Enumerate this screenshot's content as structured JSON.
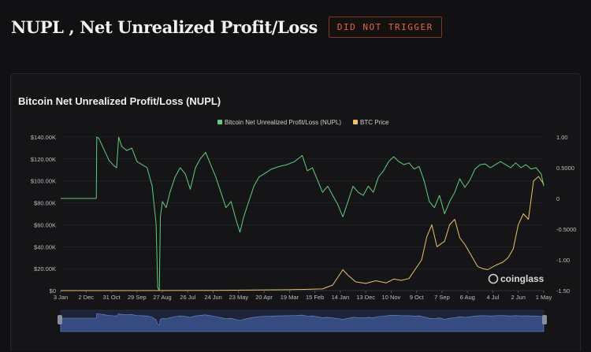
{
  "page": {
    "title": "NUPL , Net Unrealized Profit/Loss",
    "trigger_badge": "DID NOT TRIGGER"
  },
  "chart_panel": {
    "title": "Bitcoin Net Unrealized Profit/Loss (NUPL)",
    "watermark": "coinglass"
  },
  "colors": {
    "nupl": "#5fce7c",
    "btc_price": "#e8c16a",
    "badge": "#e0674a",
    "background": "#111113"
  },
  "chart_data": {
    "type": "line",
    "title": "Bitcoin Net Unrealized Profit/Loss (NUPL)",
    "x_order": "reversed",
    "categories": [
      "3 Jan",
      "2 Dec",
      "31 Oct",
      "29 Sep",
      "27 Aug",
      "26 Jul",
      "24 Jun",
      "23 May",
      "20 Apr",
      "19 Mar",
      "15 Feb",
      "14 Jan",
      "13 Dec",
      "10 Nov",
      "9 Oct",
      "7 Sep",
      "6 Aug",
      "4 Jul",
      "2 Jun",
      "1 May"
    ],
    "y_left": {
      "ticks": [
        "$0",
        "$20.00K",
        "$40.00K",
        "$60.00K",
        "$80.00K",
        "$100.00K",
        "$120.00K",
        "$140.00K"
      ],
      "range": [
        0,
        140000
      ]
    },
    "y_right": {
      "ticks": [
        "1.00",
        "0.5000",
        "0",
        "-0.5000",
        "-1.00",
        "-1.50"
      ],
      "range": [
        -1.5,
        1.0
      ]
    },
    "grid": true,
    "legend_position": "top-center",
    "series": [
      {
        "name": "Bitcoin Net Unrealized Profit/Loss (NUPL)",
        "axis": "right",
        "points": [
          [
            0,
            0
          ],
          [
            0.5,
            0
          ],
          [
            1,
            0
          ],
          [
            1.4,
            0
          ],
          [
            1.42,
            1.0
          ],
          [
            1.5,
            0.98
          ],
          [
            1.7,
            0.8
          ],
          [
            1.9,
            0.62
          ],
          [
            2.1,
            0.53
          ],
          [
            2.2,
            0.5
          ],
          [
            2.28,
            1.0
          ],
          [
            2.4,
            0.85
          ],
          [
            2.6,
            0.78
          ],
          [
            2.8,
            0.82
          ],
          [
            3.0,
            0.6
          ],
          [
            3.2,
            0.55
          ],
          [
            3.4,
            0.5
          ],
          [
            3.6,
            0.2
          ],
          [
            3.75,
            -0.4
          ],
          [
            3.82,
            -1.45
          ],
          [
            3.88,
            -1.5
          ],
          [
            3.92,
            -0.3
          ],
          [
            4.0,
            -0.05
          ],
          [
            4.15,
            -0.15
          ],
          [
            4.3,
            0.1
          ],
          [
            4.5,
            0.35
          ],
          [
            4.7,
            0.5
          ],
          [
            4.9,
            0.4
          ],
          [
            5.1,
            0.15
          ],
          [
            5.3,
            0.5
          ],
          [
            5.5,
            0.65
          ],
          [
            5.7,
            0.75
          ],
          [
            5.9,
            0.55
          ],
          [
            6.1,
            0.35
          ],
          [
            6.3,
            0.1
          ],
          [
            6.5,
            -0.15
          ],
          [
            6.7,
            -0.05
          ],
          [
            6.9,
            -0.35
          ],
          [
            7.05,
            -0.55
          ],
          [
            7.2,
            -0.3
          ],
          [
            7.4,
            -0.05
          ],
          [
            7.6,
            0.2
          ],
          [
            7.8,
            0.35
          ],
          [
            8.0,
            0.4
          ],
          [
            8.3,
            0.48
          ],
          [
            8.6,
            0.52
          ],
          [
            8.9,
            0.55
          ],
          [
            9.2,
            0.6
          ],
          [
            9.5,
            0.7
          ],
          [
            9.7,
            0.45
          ],
          [
            9.9,
            0.5
          ],
          [
            10.1,
            0.3
          ],
          [
            10.3,
            0.1
          ],
          [
            10.5,
            0.2
          ],
          [
            10.7,
            0.05
          ],
          [
            10.9,
            -0.1
          ],
          [
            11.1,
            -0.3
          ],
          [
            11.3,
            -0.05
          ],
          [
            11.5,
            0.2
          ],
          [
            11.7,
            0.1
          ],
          [
            11.9,
            0.05
          ],
          [
            12.1,
            0.2
          ],
          [
            12.3,
            0.1
          ],
          [
            12.5,
            0.35
          ],
          [
            12.7,
            0.45
          ],
          [
            12.9,
            0.6
          ],
          [
            13.1,
            0.68
          ],
          [
            13.3,
            0.6
          ],
          [
            13.5,
            0.55
          ],
          [
            13.7,
            0.58
          ],
          [
            13.9,
            0.48
          ],
          [
            14.1,
            0.52
          ],
          [
            14.3,
            0.28
          ],
          [
            14.5,
            -0.05
          ],
          [
            14.7,
            -0.15
          ],
          [
            14.9,
            0.05
          ],
          [
            15.1,
            -0.25
          ],
          [
            15.3,
            -0.05
          ],
          [
            15.5,
            0.1
          ],
          [
            15.7,
            0.32
          ],
          [
            15.9,
            0.18
          ],
          [
            16.1,
            0.3
          ],
          [
            16.3,
            0.48
          ],
          [
            16.5,
            0.55
          ],
          [
            16.7,
            0.56
          ],
          [
            16.9,
            0.5
          ],
          [
            17.1,
            0.55
          ],
          [
            17.3,
            0.6
          ],
          [
            17.5,
            0.55
          ],
          [
            17.7,
            0.5
          ],
          [
            17.9,
            0.58
          ],
          [
            18.1,
            0.5
          ],
          [
            18.3,
            0.55
          ],
          [
            18.5,
            0.48
          ],
          [
            18.7,
            0.5
          ],
          [
            18.9,
            0.4
          ],
          [
            19.0,
            0.2
          ]
        ]
      },
      {
        "name": "BTC Price",
        "axis": "left",
        "points": [
          [
            0,
            0
          ],
          [
            3,
            0
          ],
          [
            6,
            250
          ],
          [
            9,
            800
          ],
          [
            10.3,
            1500
          ],
          [
            10.7,
            5000
          ],
          [
            11.1,
            19000
          ],
          [
            11.3,
            14000
          ],
          [
            11.6,
            8000
          ],
          [
            12,
            6500
          ],
          [
            12.4,
            9000
          ],
          [
            12.8,
            7000
          ],
          [
            13.1,
            10500
          ],
          [
            13.4,
            9300
          ],
          [
            13.7,
            11000
          ],
          [
            14.2,
            28000
          ],
          [
            14.4,
            49000
          ],
          [
            14.6,
            60000
          ],
          [
            14.8,
            40000
          ],
          [
            15.1,
            45000
          ],
          [
            15.3,
            60000
          ],
          [
            15.5,
            65000
          ],
          [
            15.7,
            48000
          ],
          [
            15.9,
            42000
          ],
          [
            16.2,
            30000
          ],
          [
            16.4,
            22000
          ],
          [
            16.6,
            20000
          ],
          [
            16.8,
            19000
          ],
          [
            17.1,
            23000
          ],
          [
            17.4,
            26000
          ],
          [
            17.6,
            30000
          ],
          [
            17.8,
            38000
          ],
          [
            18.0,
            60000
          ],
          [
            18.2,
            70000
          ],
          [
            18.4,
            65000
          ],
          [
            18.6,
            100000
          ],
          [
            18.8,
            104000
          ],
          [
            19.0,
            97000
          ]
        ]
      }
    ]
  }
}
